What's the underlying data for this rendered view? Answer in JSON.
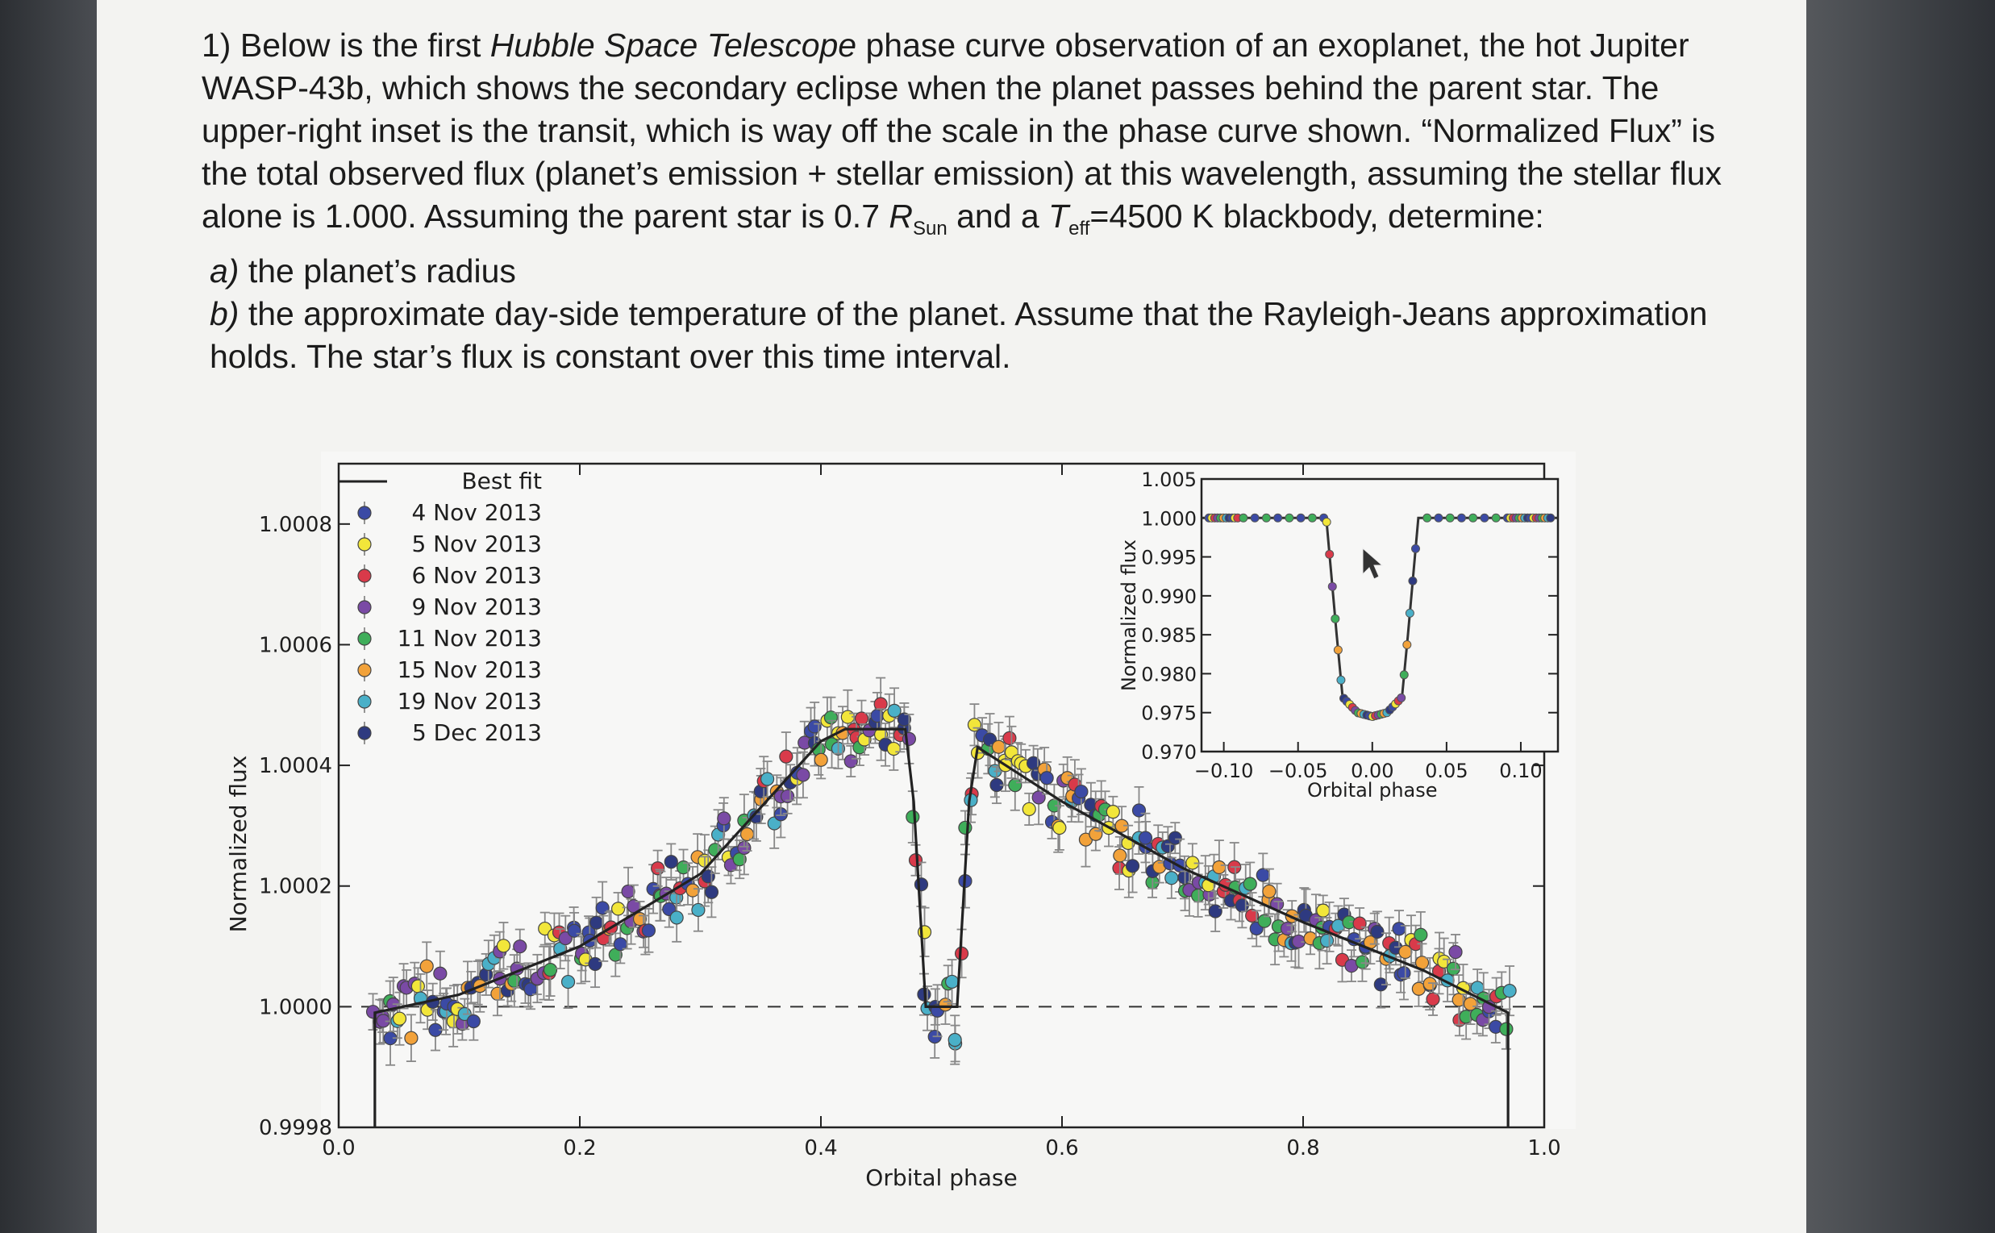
{
  "problem": {
    "intro_1": "1) Below is the first ",
    "telescope": "Hubble Space Telescope",
    "intro_2": " phase curve observation of an exoplanet, the hot Jupiter WASP-43b, which shows the secondary eclipse when the planet passes behind the parent star.  The upper-right inset is the transit, which is way off the scale in the phase curve shown. “Normalized Flux” is the total observed flux (planet’s emission + stellar emission) at this wavelength, assuming the stellar flux alone is 1.000.  Assuming the parent star is 0.7 ",
    "r_sym": "R",
    "r_sub": "Sun",
    "intro_3": " and a ",
    "t_sym": "T",
    "t_sub": "eff",
    "intro_4": "=4500 K blackbody, determine:",
    "part_a_letter": "a)",
    "part_a_text": " the planet’s radius",
    "part_b_letter": "b)",
    "part_b_text": " the approximate day-side temperature of the planet.  Assume that the Rayleigh-Jeans approximation holds. The star’s flux is constant over this time interval."
  },
  "chart_data": [
    {
      "type": "scatter",
      "xlabel": "Orbital phase",
      "ylabel": "Normalized flux",
      "xlim": [
        0.0,
        1.0
      ],
      "ylim": [
        0.9998,
        1.0009
      ],
      "xticks": [
        "0.0",
        "0.2",
        "0.4",
        "0.6",
        "0.8",
        "1.0"
      ],
      "yticks": [
        "0.9998",
        "1.0000",
        "1.0002",
        "1.0004",
        "1.0006",
        "1.0008"
      ],
      "reference_line": 1.0,
      "legend_position": "top-left",
      "legend": [
        {
          "label": "Best fit",
          "color": "#222222",
          "kind": "line"
        },
        {
          "label": "4 Nov 2013",
          "color": "#3b4aa5",
          "kind": "point"
        },
        {
          "label": "5 Nov 2013",
          "color": "#f2e63a",
          "kind": "point"
        },
        {
          "label": "6 Nov 2013",
          "color": "#d93a4a",
          "kind": "point"
        },
        {
          "label": "9 Nov 2013",
          "color": "#7a4aa5",
          "kind": "point"
        },
        {
          "label": "11 Nov 2013",
          "color": "#3fae5a",
          "kind": "point"
        },
        {
          "label": "15 Nov 2013",
          "color": "#f2a23a",
          "kind": "point"
        },
        {
          "label": "19 Nov 2013",
          "color": "#4ab0c8",
          "kind": "point"
        },
        {
          "label": "5 Dec 2013",
          "color": "#2e3a80",
          "kind": "point"
        }
      ],
      "best_fit": {
        "x": [
          0.03,
          0.03,
          0.1,
          0.2,
          0.3,
          0.4,
          0.42,
          0.47,
          0.477,
          0.487,
          0.513,
          0.523,
          0.53,
          0.6,
          0.7,
          0.8,
          0.9,
          0.97,
          0.97
        ],
        "y": [
          0.9998,
          0.99999,
          1.00002,
          1.0001,
          1.00022,
          1.00044,
          1.00046,
          1.00046,
          1.00034,
          1.0,
          1.0,
          1.00034,
          1.00043,
          1.00034,
          1.00023,
          1.00014,
          1.00006,
          0.99999,
          0.9998
        ]
      }
    },
    {
      "type": "scatter",
      "xlabel": "Orbital phase",
      "ylabel": "Normalized flux",
      "xlim": [
        -0.115,
        0.125
      ],
      "ylim": [
        0.97,
        1.005
      ],
      "xticks": [
        "−0.10",
        "−0.05",
        "0.00",
        "0.05",
        "0.10"
      ],
      "yticks": [
        "1.005",
        "1.000",
        "0.995",
        "0.990",
        "0.985",
        "0.980",
        "0.975",
        "0.970"
      ],
      "best_fit": {
        "x": [
          -0.115,
          -0.031,
          -0.024,
          -0.02,
          -0.01,
          0.0,
          0.01,
          0.02,
          0.024,
          0.031,
          0.125
        ],
        "y": [
          1.0,
          1.0,
          0.985,
          0.977,
          0.975,
          0.9745,
          0.975,
          0.977,
          0.985,
          1.0,
          1.0
        ]
      }
    }
  ]
}
